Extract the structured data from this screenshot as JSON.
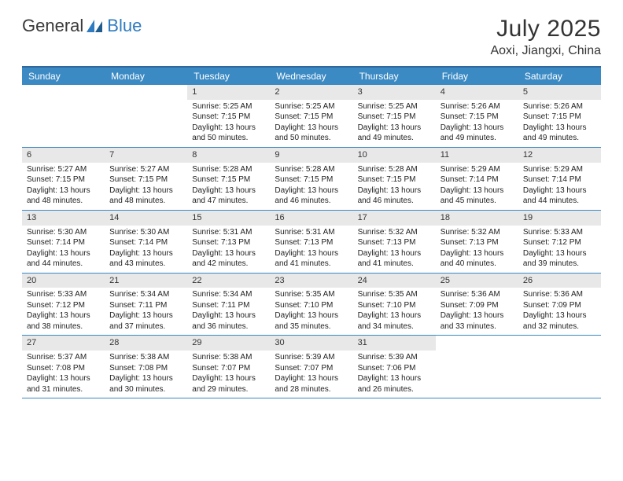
{
  "logo": {
    "word1": "General",
    "word2": "Blue"
  },
  "title": "July 2025",
  "location": "Aoxi, Jiangxi, China",
  "colors": {
    "header_bg": "#3b8ac4",
    "header_text": "#ffffff",
    "rule": "#3b8ac4",
    "daynum_bg": "#e8e8e8",
    "logo_blue": "#2e7bbf"
  },
  "day_headers": [
    "Sunday",
    "Monday",
    "Tuesday",
    "Wednesday",
    "Thursday",
    "Friday",
    "Saturday"
  ],
  "weeks": [
    [
      {
        "n": "",
        "sr": "",
        "ss": "",
        "dl": "",
        "empty": true
      },
      {
        "n": "",
        "sr": "",
        "ss": "",
        "dl": "",
        "empty": true
      },
      {
        "n": "1",
        "sr": "Sunrise: 5:25 AM",
        "ss": "Sunset: 7:15 PM",
        "dl": "Daylight: 13 hours and 50 minutes."
      },
      {
        "n": "2",
        "sr": "Sunrise: 5:25 AM",
        "ss": "Sunset: 7:15 PM",
        "dl": "Daylight: 13 hours and 50 minutes."
      },
      {
        "n": "3",
        "sr": "Sunrise: 5:25 AM",
        "ss": "Sunset: 7:15 PM",
        "dl": "Daylight: 13 hours and 49 minutes."
      },
      {
        "n": "4",
        "sr": "Sunrise: 5:26 AM",
        "ss": "Sunset: 7:15 PM",
        "dl": "Daylight: 13 hours and 49 minutes."
      },
      {
        "n": "5",
        "sr": "Sunrise: 5:26 AM",
        "ss": "Sunset: 7:15 PM",
        "dl": "Daylight: 13 hours and 49 minutes."
      }
    ],
    [
      {
        "n": "6",
        "sr": "Sunrise: 5:27 AM",
        "ss": "Sunset: 7:15 PM",
        "dl": "Daylight: 13 hours and 48 minutes."
      },
      {
        "n": "7",
        "sr": "Sunrise: 5:27 AM",
        "ss": "Sunset: 7:15 PM",
        "dl": "Daylight: 13 hours and 48 minutes."
      },
      {
        "n": "8",
        "sr": "Sunrise: 5:28 AM",
        "ss": "Sunset: 7:15 PM",
        "dl": "Daylight: 13 hours and 47 minutes."
      },
      {
        "n": "9",
        "sr": "Sunrise: 5:28 AM",
        "ss": "Sunset: 7:15 PM",
        "dl": "Daylight: 13 hours and 46 minutes."
      },
      {
        "n": "10",
        "sr": "Sunrise: 5:28 AM",
        "ss": "Sunset: 7:15 PM",
        "dl": "Daylight: 13 hours and 46 minutes."
      },
      {
        "n": "11",
        "sr": "Sunrise: 5:29 AM",
        "ss": "Sunset: 7:14 PM",
        "dl": "Daylight: 13 hours and 45 minutes."
      },
      {
        "n": "12",
        "sr": "Sunrise: 5:29 AM",
        "ss": "Sunset: 7:14 PM",
        "dl": "Daylight: 13 hours and 44 minutes."
      }
    ],
    [
      {
        "n": "13",
        "sr": "Sunrise: 5:30 AM",
        "ss": "Sunset: 7:14 PM",
        "dl": "Daylight: 13 hours and 44 minutes."
      },
      {
        "n": "14",
        "sr": "Sunrise: 5:30 AM",
        "ss": "Sunset: 7:14 PM",
        "dl": "Daylight: 13 hours and 43 minutes."
      },
      {
        "n": "15",
        "sr": "Sunrise: 5:31 AM",
        "ss": "Sunset: 7:13 PM",
        "dl": "Daylight: 13 hours and 42 minutes."
      },
      {
        "n": "16",
        "sr": "Sunrise: 5:31 AM",
        "ss": "Sunset: 7:13 PM",
        "dl": "Daylight: 13 hours and 41 minutes."
      },
      {
        "n": "17",
        "sr": "Sunrise: 5:32 AM",
        "ss": "Sunset: 7:13 PM",
        "dl": "Daylight: 13 hours and 41 minutes."
      },
      {
        "n": "18",
        "sr": "Sunrise: 5:32 AM",
        "ss": "Sunset: 7:13 PM",
        "dl": "Daylight: 13 hours and 40 minutes."
      },
      {
        "n": "19",
        "sr": "Sunrise: 5:33 AM",
        "ss": "Sunset: 7:12 PM",
        "dl": "Daylight: 13 hours and 39 minutes."
      }
    ],
    [
      {
        "n": "20",
        "sr": "Sunrise: 5:33 AM",
        "ss": "Sunset: 7:12 PM",
        "dl": "Daylight: 13 hours and 38 minutes."
      },
      {
        "n": "21",
        "sr": "Sunrise: 5:34 AM",
        "ss": "Sunset: 7:11 PM",
        "dl": "Daylight: 13 hours and 37 minutes."
      },
      {
        "n": "22",
        "sr": "Sunrise: 5:34 AM",
        "ss": "Sunset: 7:11 PM",
        "dl": "Daylight: 13 hours and 36 minutes."
      },
      {
        "n": "23",
        "sr": "Sunrise: 5:35 AM",
        "ss": "Sunset: 7:10 PM",
        "dl": "Daylight: 13 hours and 35 minutes."
      },
      {
        "n": "24",
        "sr": "Sunrise: 5:35 AM",
        "ss": "Sunset: 7:10 PM",
        "dl": "Daylight: 13 hours and 34 minutes."
      },
      {
        "n": "25",
        "sr": "Sunrise: 5:36 AM",
        "ss": "Sunset: 7:09 PM",
        "dl": "Daylight: 13 hours and 33 minutes."
      },
      {
        "n": "26",
        "sr": "Sunrise: 5:36 AM",
        "ss": "Sunset: 7:09 PM",
        "dl": "Daylight: 13 hours and 32 minutes."
      }
    ],
    [
      {
        "n": "27",
        "sr": "Sunrise: 5:37 AM",
        "ss": "Sunset: 7:08 PM",
        "dl": "Daylight: 13 hours and 31 minutes."
      },
      {
        "n": "28",
        "sr": "Sunrise: 5:38 AM",
        "ss": "Sunset: 7:08 PM",
        "dl": "Daylight: 13 hours and 30 minutes."
      },
      {
        "n": "29",
        "sr": "Sunrise: 5:38 AM",
        "ss": "Sunset: 7:07 PM",
        "dl": "Daylight: 13 hours and 29 minutes."
      },
      {
        "n": "30",
        "sr": "Sunrise: 5:39 AM",
        "ss": "Sunset: 7:07 PM",
        "dl": "Daylight: 13 hours and 28 minutes."
      },
      {
        "n": "31",
        "sr": "Sunrise: 5:39 AM",
        "ss": "Sunset: 7:06 PM",
        "dl": "Daylight: 13 hours and 26 minutes."
      },
      {
        "n": "",
        "sr": "",
        "ss": "",
        "dl": "",
        "empty": true
      },
      {
        "n": "",
        "sr": "",
        "ss": "",
        "dl": "",
        "empty": true
      }
    ]
  ]
}
